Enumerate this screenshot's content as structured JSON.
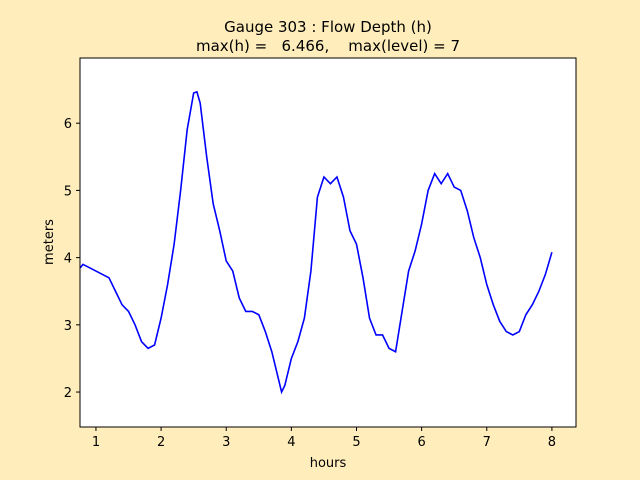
{
  "chart_data": {
    "type": "line",
    "title": "Gauge 303 : Flow Depth (h)",
    "subtitle": "max(h) =   6.466,    max(level) = 7",
    "x_label": "hours",
    "y_label": "meters",
    "x": [
      0.76,
      0.8,
      0.9,
      1.0,
      1.1,
      1.2,
      1.3,
      1.4,
      1.5,
      1.6,
      1.7,
      1.8,
      1.9,
      2.0,
      2.1,
      2.2,
      2.3,
      2.4,
      2.5,
      2.55,
      2.6,
      2.7,
      2.8,
      2.9,
      3.0,
      3.1,
      3.2,
      3.3,
      3.4,
      3.5,
      3.6,
      3.7,
      3.8,
      3.85,
      3.9,
      4.0,
      4.1,
      4.2,
      4.3,
      4.4,
      4.5,
      4.6,
      4.7,
      4.8,
      4.9,
      5.0,
      5.1,
      5.2,
      5.3,
      5.4,
      5.5,
      5.6,
      5.7,
      5.8,
      5.9,
      6.0,
      6.1,
      6.2,
      6.3,
      6.4,
      6.5,
      6.6,
      6.7,
      6.8,
      6.9,
      7.0,
      7.1,
      7.2,
      7.3,
      7.4,
      7.5,
      7.6,
      7.7,
      7.8,
      7.9,
      8.0
    ],
    "series": [
      {
        "name": "h",
        "color": "#0000ff",
        "values": [
          3.85,
          3.9,
          3.85,
          3.8,
          3.75,
          3.7,
          3.5,
          3.3,
          3.2,
          3.0,
          2.75,
          2.65,
          2.7,
          3.1,
          3.6,
          4.2,
          5.0,
          5.9,
          6.45,
          6.466,
          6.3,
          5.5,
          4.8,
          4.4,
          3.95,
          3.8,
          3.4,
          3.2,
          3.2,
          3.15,
          2.9,
          2.6,
          2.2,
          2.0,
          2.1,
          2.5,
          2.75,
          3.1,
          3.8,
          4.9,
          5.2,
          5.1,
          5.2,
          4.9,
          4.4,
          4.2,
          3.7,
          3.1,
          2.85,
          2.85,
          2.65,
          2.6,
          3.2,
          3.8,
          4.1,
          4.5,
          5.0,
          5.25,
          5.1,
          5.25,
          5.05,
          5.0,
          4.7,
          4.3,
          4.0,
          3.6,
          3.3,
          3.05,
          2.9,
          2.85,
          2.9,
          3.15,
          3.3,
          3.5,
          3.75,
          4.08
        ]
      }
    ],
    "xlim": [
      0.755,
      8.37
    ],
    "xticks": [
      1,
      2,
      3,
      4,
      5,
      6,
      7,
      8
    ],
    "ylim": [
      1.48,
      6.97
    ],
    "yticks": [
      2,
      3,
      4,
      5,
      6
    ]
  }
}
